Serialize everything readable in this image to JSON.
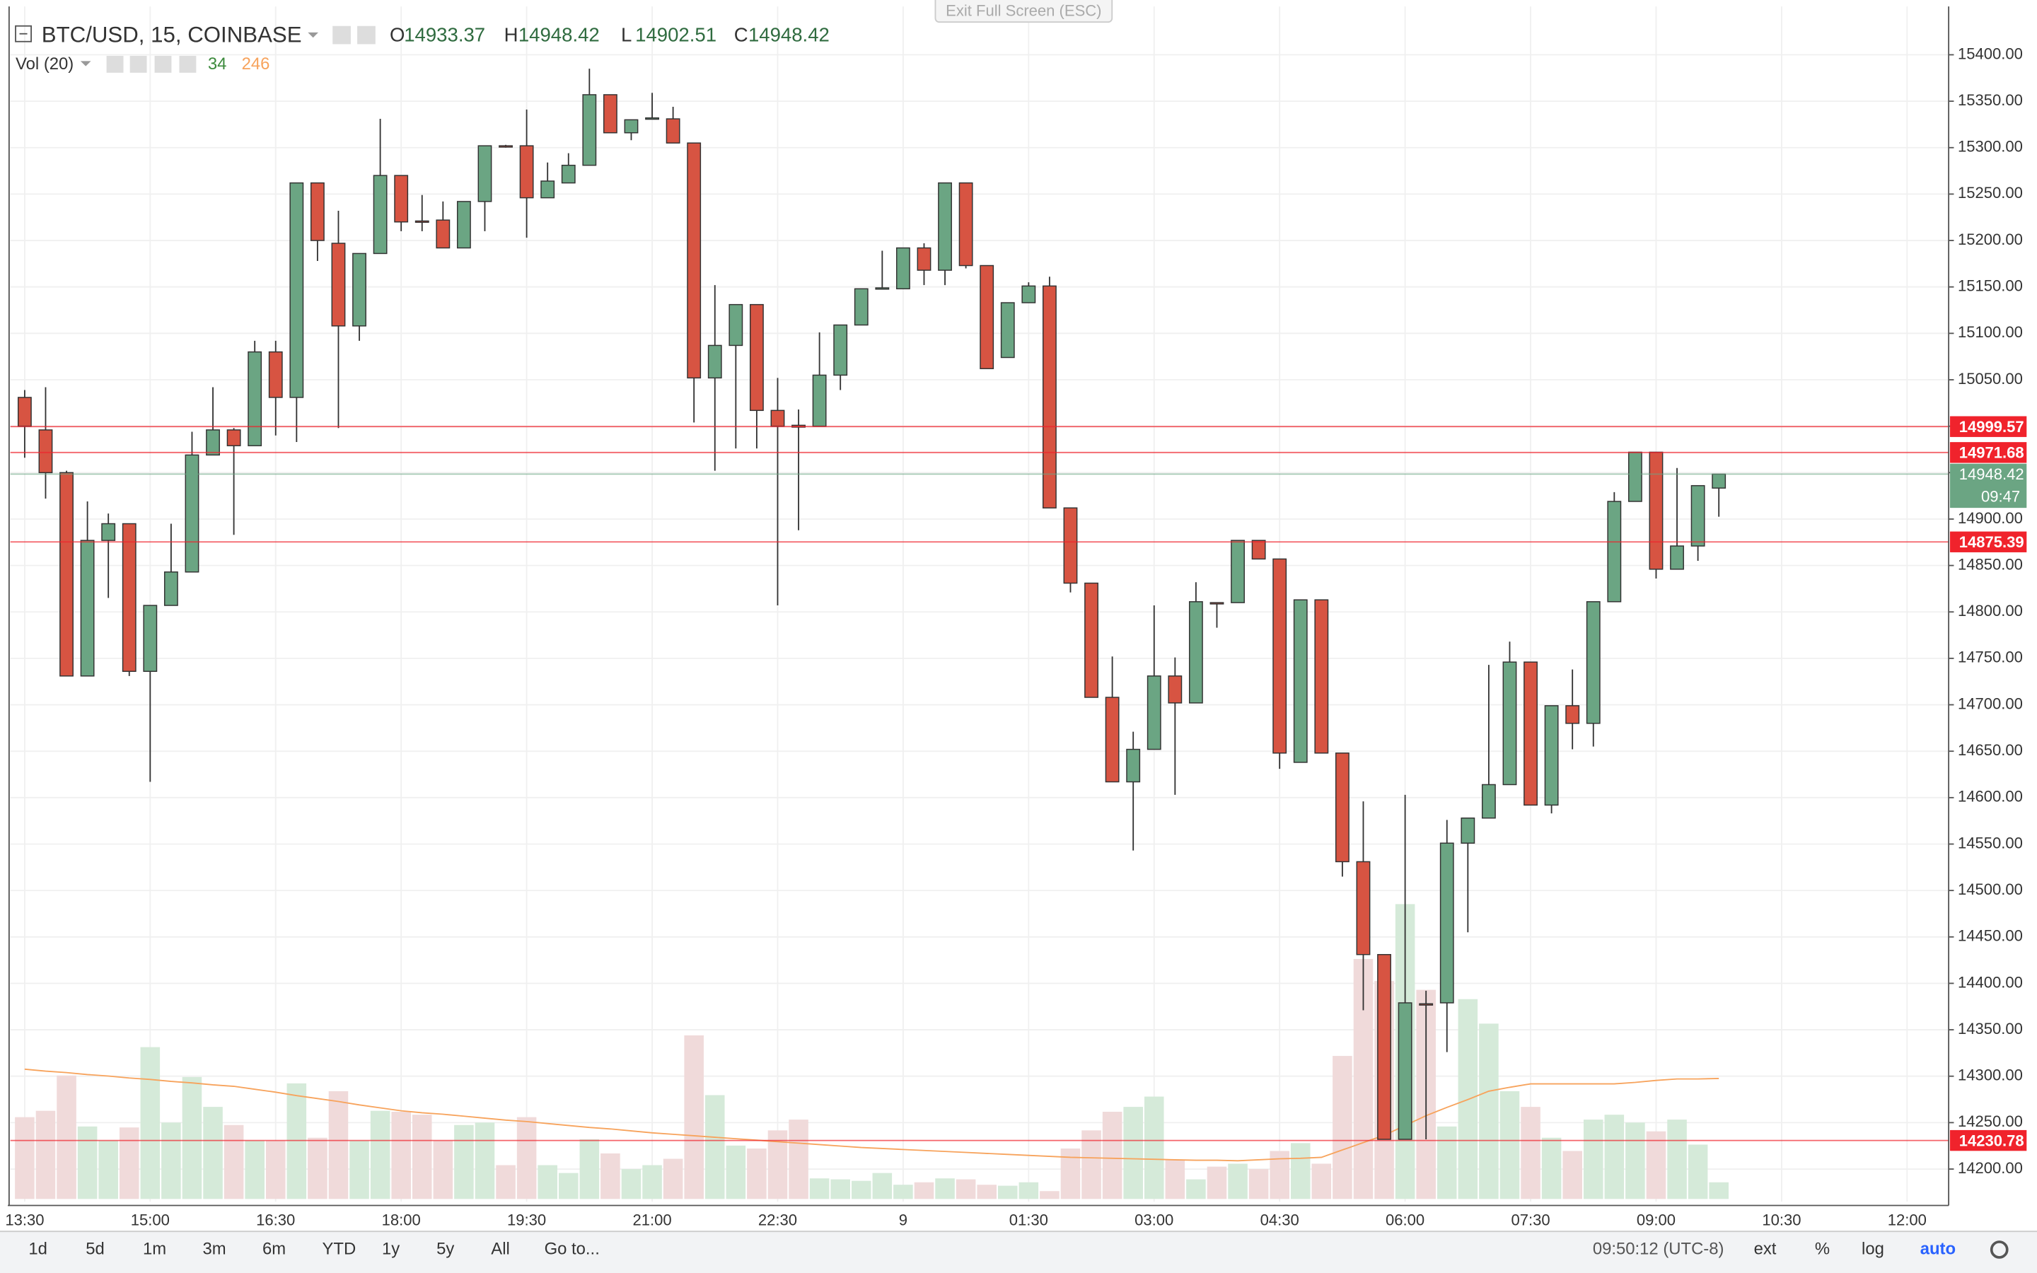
{
  "ui": {
    "exit_fullscreen": "Exit Full Screen (ESC)",
    "symbol": "BTC/USD, 15, COINBASE",
    "ohlc_letters": [
      "O",
      "H",
      "L",
      "C"
    ],
    "volume_study": "Vol (20)",
    "ranges": [
      "1d",
      "5d",
      "1m",
      "3m",
      "6m",
      "YTD",
      "1y",
      "5y",
      "All"
    ],
    "goto": "Go to...",
    "clock": "09:50:12 (UTC-8)",
    "toggles": [
      "ext",
      "%",
      "log",
      "auto"
    ],
    "countdown": "09:47"
  },
  "chart_data": {
    "type": "candlestick",
    "categories": [
      "13:30",
      null,
      null,
      null,
      null,
      null,
      "15:00",
      null,
      null,
      null,
      null,
      null,
      "16:30",
      null,
      null,
      null,
      null,
      null,
      "18:00",
      null,
      null,
      null,
      null,
      null,
      "19:30",
      null,
      null,
      null,
      null,
      null,
      "21:00",
      null,
      null,
      null,
      null,
      null,
      "22:30",
      null,
      null,
      null,
      null,
      null,
      "9",
      null,
      null,
      null,
      null,
      null,
      "01:30",
      null,
      null,
      null,
      null,
      null,
      "03:00",
      null,
      null,
      null,
      null,
      null,
      "04:30",
      null,
      null,
      null,
      null,
      null,
      "06:00",
      null,
      null,
      null,
      null,
      null,
      "07:30",
      null,
      null,
      null,
      null,
      null,
      "09:00",
      null,
      null,
      null,
      null,
      null,
      "10:30",
      null,
      null,
      null,
      null,
      null,
      "12:00",
      null
    ],
    "open": [
      15031,
      14996,
      14950,
      14731,
      14877,
      14895,
      14736,
      14807,
      14843,
      14969,
      14996,
      14979,
      15080,
      15031,
      15262,
      15197,
      15108,
      15186,
      15270,
      15221,
      15222,
      15192,
      15242,
      15302,
      15302,
      15246,
      15262,
      15281,
      15357,
      15316,
      15331,
      15331,
      15305,
      15052,
      15087,
      15131,
      15017,
      15001,
      15000,
      15055,
      15109,
      15148,
      15148,
      15192,
      15168,
      15262,
      15173,
      15074,
      15133,
      15151,
      14912,
      14831,
      14708,
      14617,
      14652,
      14731,
      14702,
      14810,
      14810,
      14877,
      14857,
      14638,
      14813,
      14648,
      14531,
      14431,
      14232,
      14378,
      14379,
      14551,
      14578,
      14614,
      14746,
      14592,
      14699,
      14680,
      14811,
      14919,
      14972,
      14846,
      14871,
      14933.37,
      null,
      null,
      null,
      null,
      null,
      null,
      null,
      null,
      null,
      null
    ],
    "high": [
      15039,
      15042,
      14952,
      14919,
      14906,
      14895,
      14807,
      14895,
      14994,
      15042,
      14998,
      15092,
      15092,
      15262,
      15262,
      15232,
      15186,
      15331,
      15270,
      15249,
      15242,
      15242,
      15302,
      15303,
      15341,
      15284,
      15294,
      15385,
      15357,
      15330,
      15359,
      15344,
      15305,
      15152,
      15131,
      15131,
      15052,
      15018,
      15101,
      15109,
      15148,
      15189,
      15192,
      15197,
      15262,
      15262,
      15173,
      15133,
      15155,
      15161,
      14912,
      14831,
      14752,
      14671,
      14807,
      14751,
      14832,
      14810,
      14877,
      14877,
      14857,
      14813,
      14813,
      14648,
      14596,
      14431,
      14603,
      14392,
      14576,
      14578,
      14743,
      14768,
      14746,
      14699,
      14738,
      14811,
      14929,
      14972,
      14972,
      14955,
      14936,
      14948.42,
      null,
      null,
      null,
      null,
      null,
      null,
      null,
      null,
      null,
      null
    ],
    "low": [
      14966,
      14922,
      14731,
      14731,
      14815,
      14731,
      14617,
      14807,
      14843,
      14969,
      14883,
      14979,
      14990,
      14983,
      15178,
      14998,
      15092,
      15186,
      15210,
      15210,
      15192,
      15192,
      15210,
      15300,
      15203,
      15246,
      15262,
      15281,
      15316,
      15308,
      15331,
      15305,
      15004,
      14952,
      14976,
      14976,
      14807,
      14888,
      15000,
      15039,
      15109,
      15148,
      15148,
      15152,
      15152,
      15170,
      15062,
      15074,
      15133,
      14912,
      14821,
      14708,
      14617,
      14543,
      14652,
      14603,
      14702,
      14783,
      14810,
      14857,
      14631,
      14638,
      14648,
      14515,
      14371,
      14232,
      14232,
      14232,
      14326,
      14455,
      14578,
      14614,
      14592,
      14583,
      14652,
      14655,
      14811,
      14919,
      14836,
      14846,
      14855,
      14902.51,
      null,
      null,
      null,
      null,
      null,
      null,
      null,
      null,
      null,
      null
    ],
    "close": [
      15000,
      14950,
      14731,
      14877,
      14895,
      14736,
      14807,
      14843,
      14969,
      14996,
      14979,
      15080,
      15031,
      15262,
      15200,
      15108,
      15186,
      15270,
      15220,
      15220,
      15192,
      15242,
      15302,
      15301,
      15246,
      15264,
      15281,
      15357,
      15316,
      15330,
      15332,
      15305,
      15052,
      15087,
      15131,
      15017,
      15000,
      14999,
      15055,
      15109,
      15148,
      15149,
      15192,
      15168,
      15262,
      15173,
      15062,
      15133,
      15151,
      14912,
      14831,
      14708,
      14617,
      14652,
      14731,
      14702,
      14811,
      14809,
      14877,
      14857,
      14648,
      14813,
      14648,
      14531,
      14431,
      14232,
      14379,
      14377,
      14551,
      14578,
      14614,
      14746,
      14592,
      14699,
      14680,
      14811,
      14919,
      14972,
      14846,
      14871,
      14936,
      14948.42,
      null,
      null,
      null,
      null,
      null,
      null,
      null,
      null,
      null,
      null
    ],
    "volume": [
      167,
      180,
      252,
      148,
      119,
      146,
      310,
      156,
      249,
      188,
      151,
      119,
      119,
      236,
      125,
      220,
      119,
      180,
      178,
      172,
      119,
      151,
      156,
      69,
      167,
      69,
      53,
      122,
      93,
      61,
      69,
      82,
      334,
      212,
      109,
      103,
      140,
      162,
      42,
      40,
      37,
      53,
      29,
      34,
      42,
      40,
      29,
      27,
      34,
      16,
      103,
      140,
      178,
      188,
      209,
      80,
      40,
      66,
      72,
      61,
      98,
      114,
      72,
      292,
      490,
      445,
      602,
      427,
      148,
      408,
      358,
      220,
      188,
      125,
      98,
      162,
      172,
      156,
      138,
      162,
      111,
      34,
      null,
      null,
      null,
      null,
      null,
      null,
      null,
      null,
      null,
      null
    ],
    "volume_ma": [
      265,
      261,
      258,
      254,
      251,
      247,
      244,
      240,
      237,
      233,
      230,
      224,
      218,
      211,
      205,
      199,
      192,
      186,
      180,
      176,
      173,
      169,
      165,
      161,
      158,
      154,
      150,
      146,
      143,
      139,
      135,
      132,
      129,
      126,
      123,
      120,
      117,
      114,
      111,
      108,
      105,
      103,
      101,
      99,
      97,
      95,
      93,
      91,
      89,
      87,
      85,
      84,
      83,
      82,
      81,
      80,
      79,
      79,
      78,
      80,
      82,
      83,
      85,
      100,
      115,
      130,
      150,
      170,
      187,
      203,
      220,
      228,
      235,
      235,
      235,
      235,
      235,
      238,
      242,
      245,
      245,
      246,
      null,
      null,
      null,
      null,
      null,
      null,
      null,
      null,
      null,
      null
    ],
    "ylim": [
      14165,
      15452
    ],
    "volume_ylim": [
      0,
      2440
    ],
    "yticks": [
      {
        "value": 14200,
        "label": "14200.00"
      },
      {
        "value": 14250,
        "label": "14250.00"
      },
      {
        "value": 14300,
        "label": "14300.00"
      },
      {
        "value": 14350,
        "label": "14350.00"
      },
      {
        "value": 14400,
        "label": "14400.00"
      },
      {
        "value": 14450,
        "label": "14450.00"
      },
      {
        "value": 14500,
        "label": "14500.00"
      },
      {
        "value": 14550,
        "label": "14550.00"
      },
      {
        "value": 14600,
        "label": "14600.00"
      },
      {
        "value": 14650,
        "label": "14650.00"
      },
      {
        "value": 14700,
        "label": "14700.00"
      },
      {
        "value": 14750,
        "label": "14750.00"
      },
      {
        "value": 14800,
        "label": "14800.00"
      },
      {
        "value": 14850,
        "label": "14850.00"
      },
      {
        "value": 14900,
        "label": "14900.00"
      },
      {
        "value": 14950,
        "label": "14950.00"
      },
      {
        "value": 15000,
        "label": "15000.00"
      },
      {
        "value": 15050,
        "label": "15050.00"
      },
      {
        "value": 15100,
        "label": "15100.00"
      },
      {
        "value": 15150,
        "label": "15150.00"
      },
      {
        "value": 15200,
        "label": "15200.00"
      },
      {
        "value": 15250,
        "label": "15250.00"
      },
      {
        "value": 15300,
        "label": "15300.00"
      },
      {
        "value": 15350,
        "label": "15350.00"
      },
      {
        "value": 15400,
        "label": "15400.00"
      }
    ],
    "price_lines": [
      14999.57,
      14971.68,
      14875.39,
      14230.78
    ],
    "grid": true,
    "up_color": "#6ba583",
    "down_color": "#d75442",
    "up_volume_color": "#d5ead9",
    "down_volume_color": "#f0dada",
    "volume_ma_color": "#f7a35c",
    "price_line_color": "#f0232c"
  }
}
